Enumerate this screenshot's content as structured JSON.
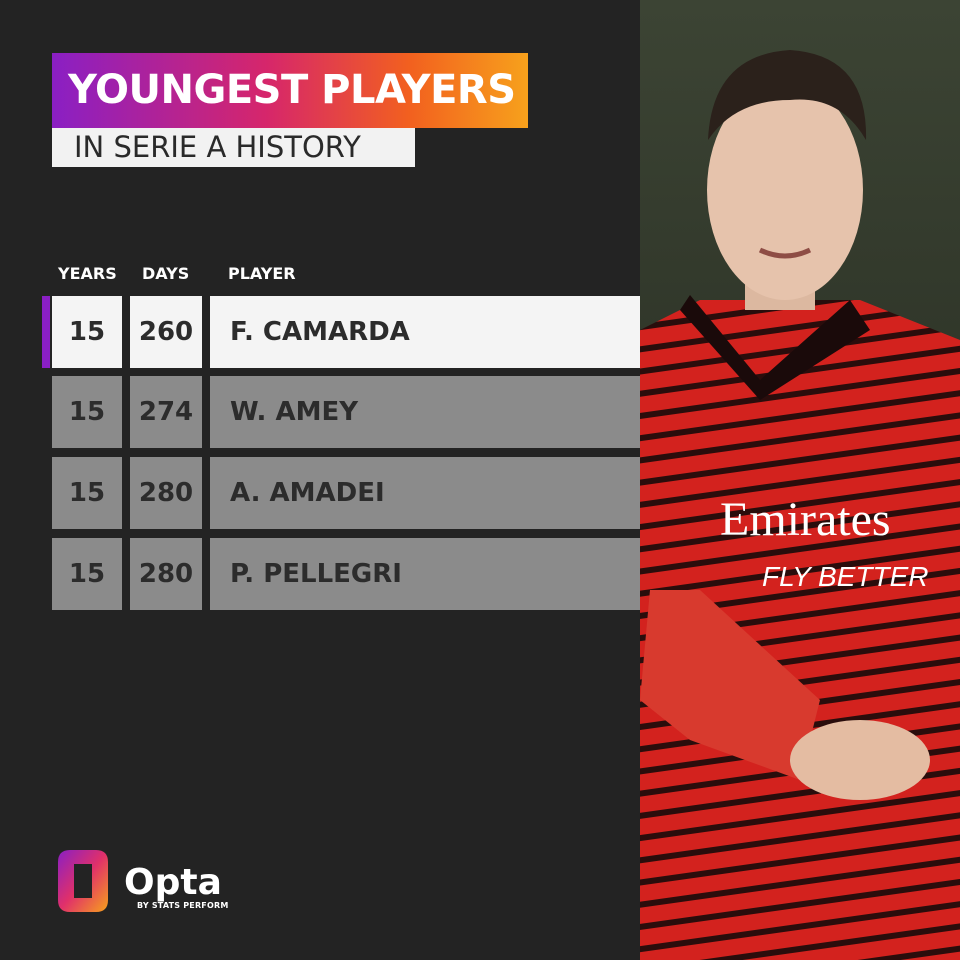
{
  "header": {
    "title": "YOUNGEST PLAYERS",
    "subtitle": "IN SERIE A HISTORY"
  },
  "table": {
    "columns": [
      "YEARS",
      "DAYS",
      "PLAYER"
    ],
    "rows": [
      [
        15,
        260,
        "F. CAMARDA"
      ],
      [
        15,
        274,
        "W. AMEY"
      ],
      [
        15,
        280,
        "A. AMADEI"
      ],
      [
        15,
        280,
        "P. PELLEGRI"
      ]
    ]
  },
  "photo": {
    "shirt_sponsor": "Emirates",
    "shirt_tagline": "FLY BETTER"
  },
  "logo": {
    "name": "Opta",
    "tagline": "BY STATS PERFORM"
  }
}
